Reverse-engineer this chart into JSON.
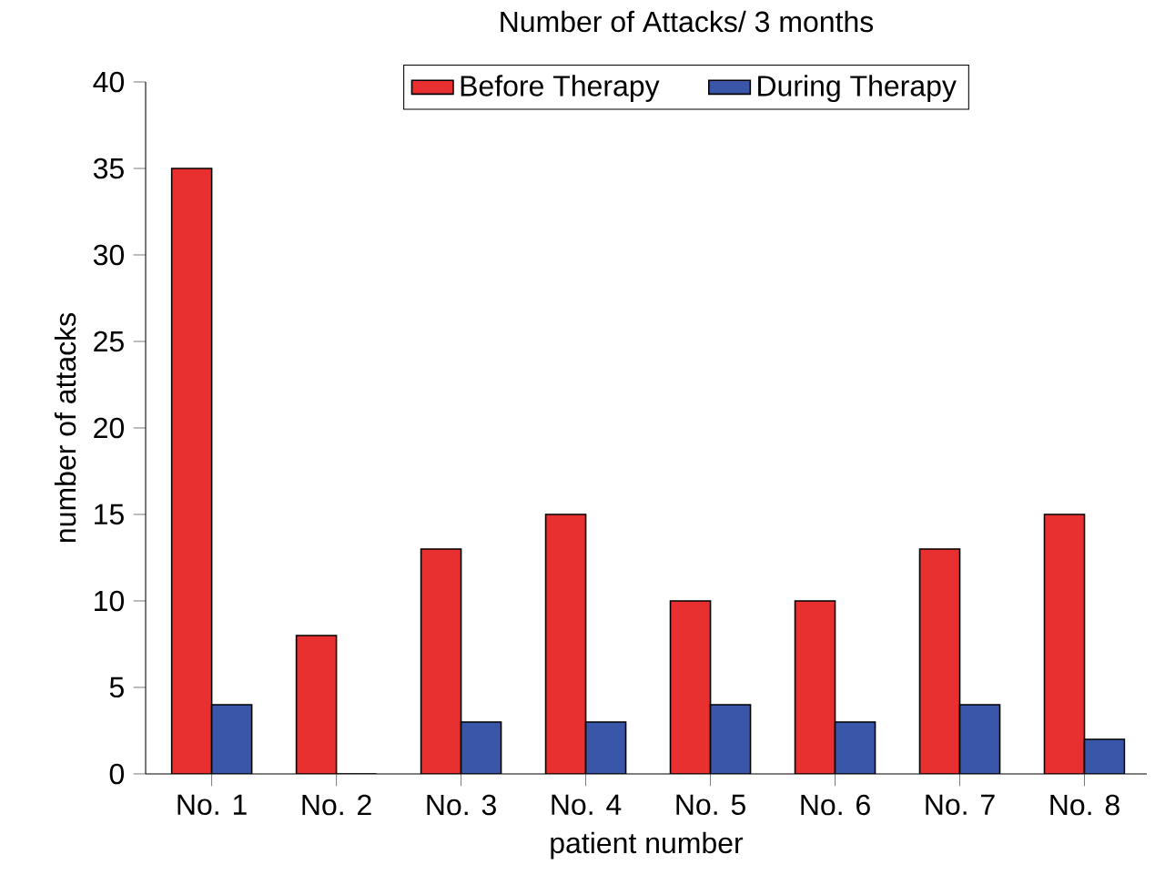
{
  "chart_data": {
    "type": "bar",
    "title": "Number of Attacks/ 3 months",
    "xlabel": "patient number",
    "ylabel": "number of attacks",
    "categories": [
      "No. 1",
      "No. 2",
      "No. 3",
      "No. 4",
      "No. 5",
      "No. 6",
      "No. 7",
      "No. 8"
    ],
    "series": [
      {
        "name": "Before Therapy",
        "color": "#e83030",
        "values": [
          35,
          8,
          13,
          15,
          10,
          10,
          13,
          15
        ]
      },
      {
        "name": "During Therapy",
        "color": "#3a56a8",
        "values": [
          4,
          0,
          3,
          3,
          4,
          3,
          4,
          2
        ]
      }
    ],
    "ylim": [
      0,
      40
    ],
    "yticks": [
      0,
      5,
      10,
      15,
      20,
      25,
      30,
      35,
      40
    ],
    "grid": false,
    "legend": "top"
  }
}
